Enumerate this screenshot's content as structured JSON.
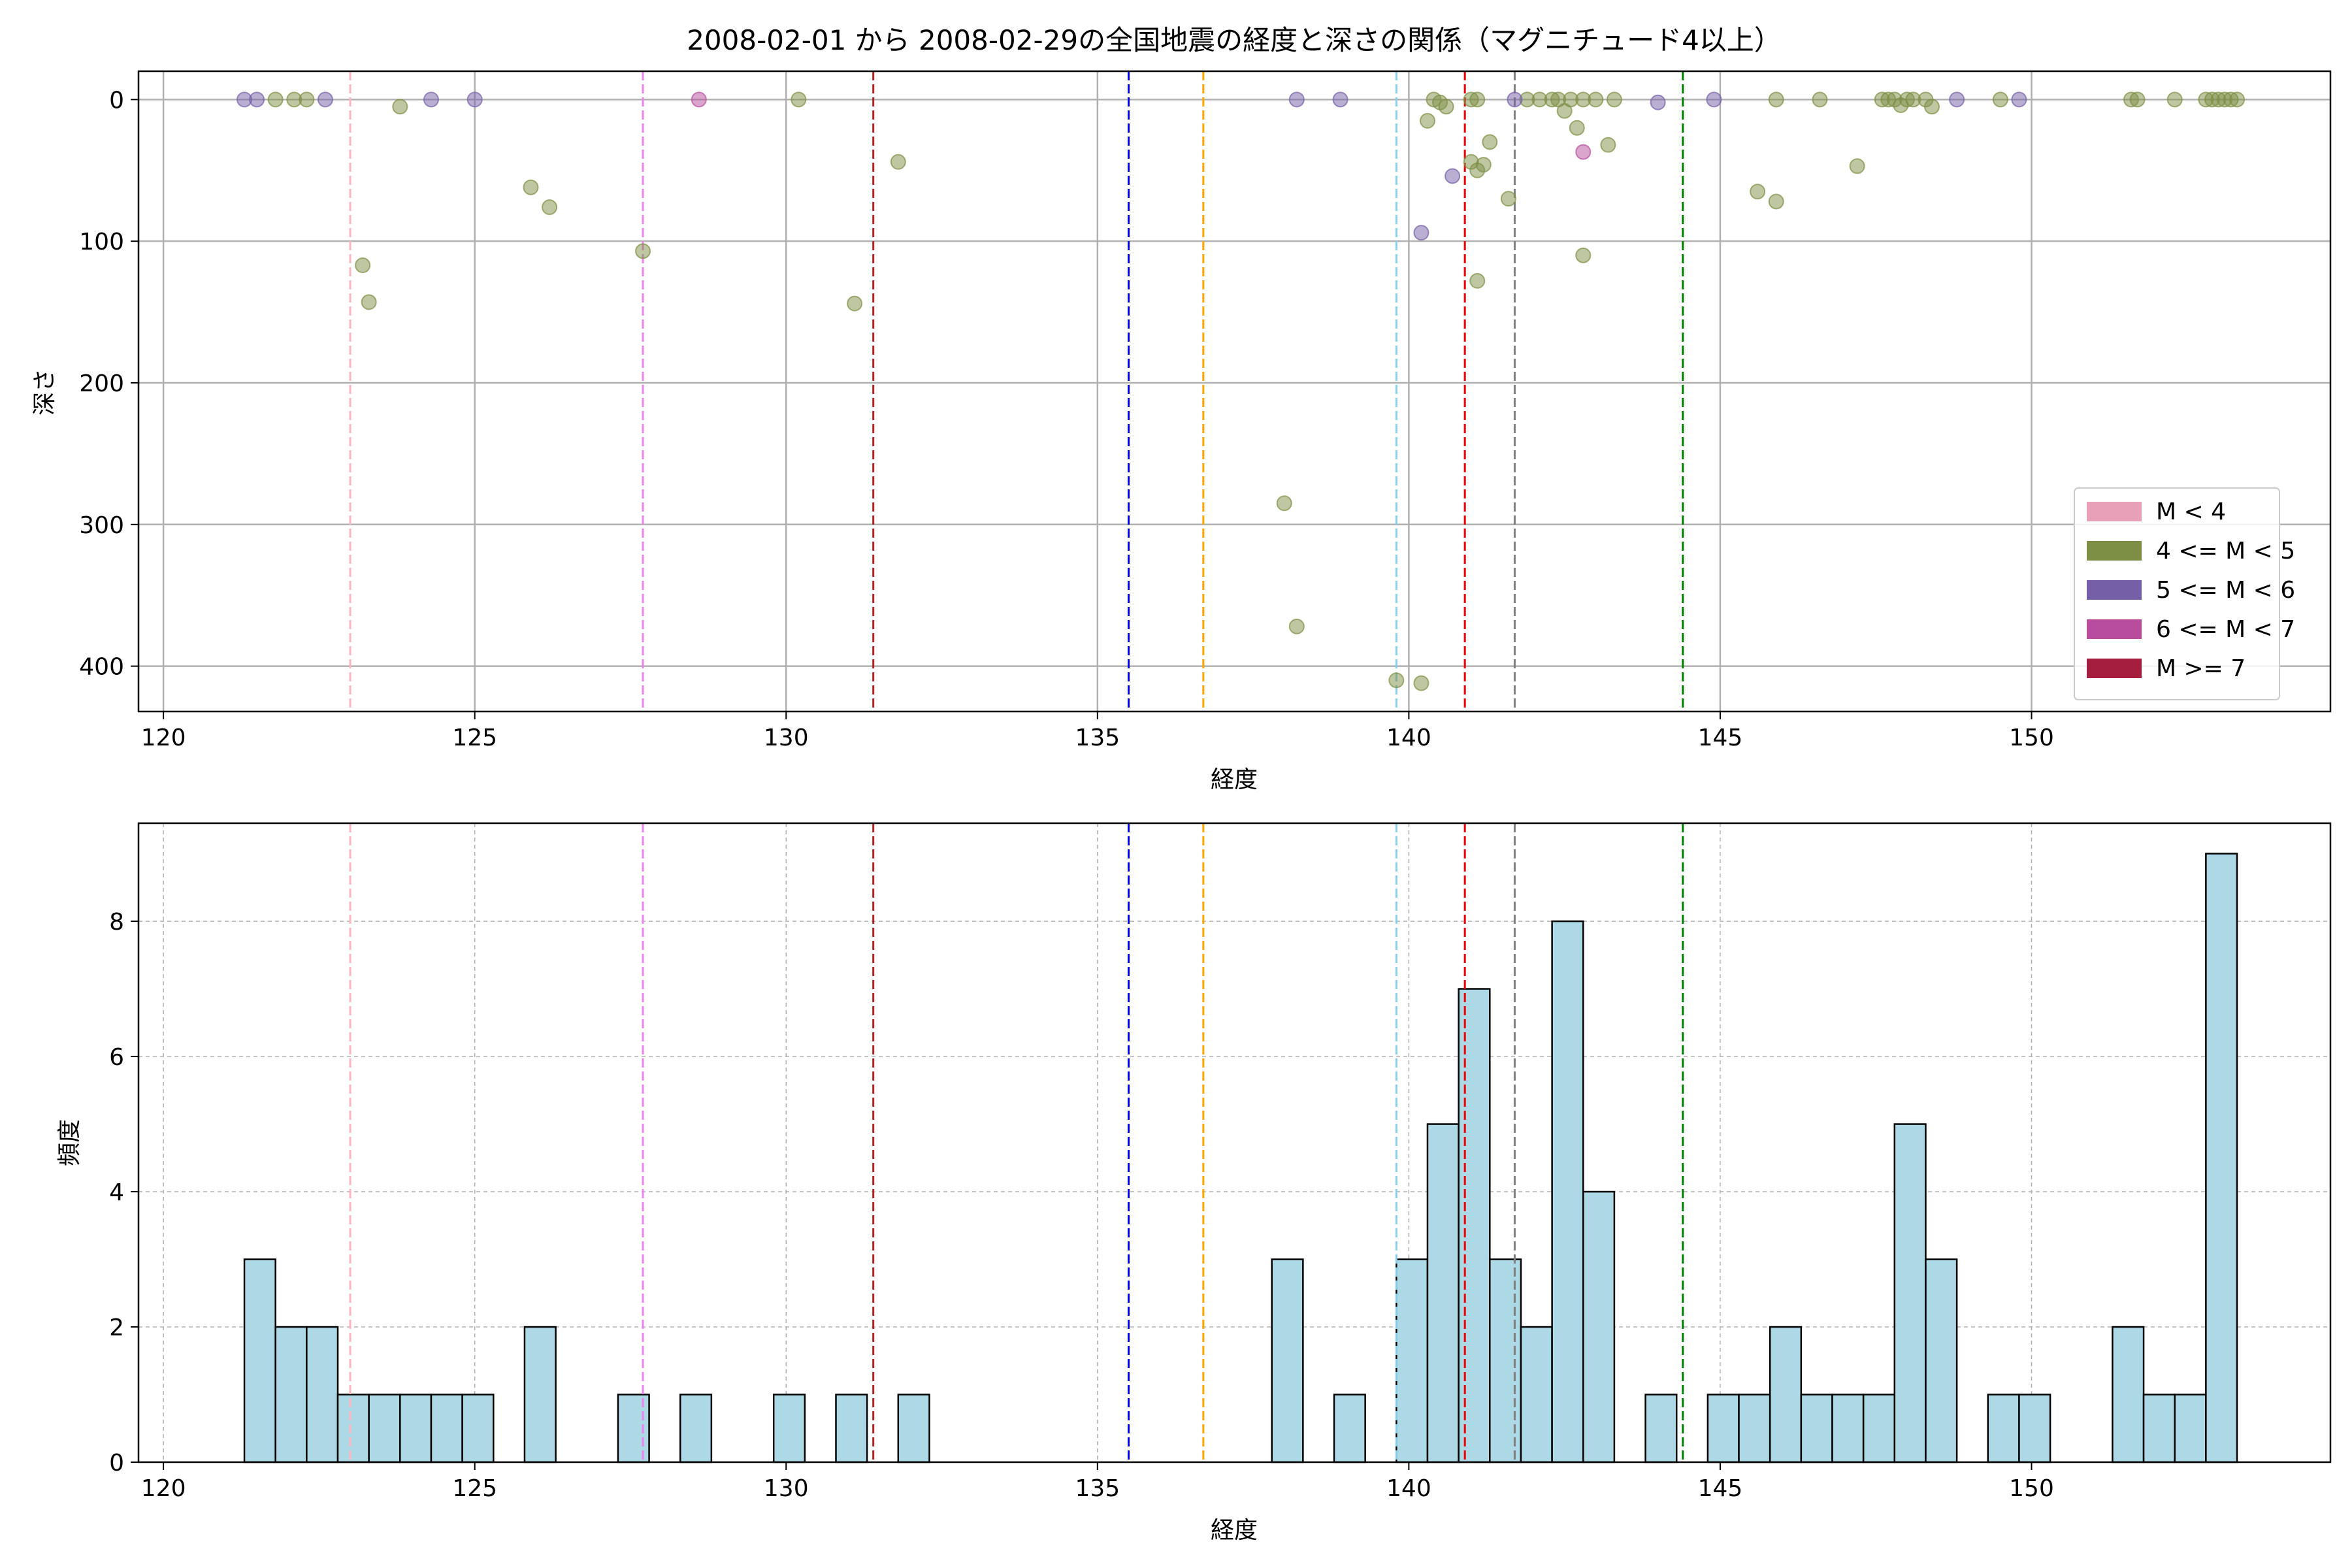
{
  "figure_title": "2008-02-01 から 2008-02-29の全国地震の経度と深さの関係（マグニチュード4以上）",
  "chart_data": [
    {
      "type": "scatter",
      "title": "2008-02-01 から 2008-02-29の全国地震の経度と深さの関係（マグニチュード4以上）",
      "xlabel": "経度",
      "ylabel": "深さ",
      "xlim": [
        119.6,
        154.8
      ],
      "ylim": [
        432,
        -20
      ],
      "y_inverted": true,
      "xticks": [
        120,
        125,
        130,
        135,
        140,
        145,
        150
      ],
      "yticks": [
        0,
        100,
        200,
        300,
        400
      ],
      "grid": true,
      "legend_position": "lower-right",
      "legend": [
        {
          "label": "M < 4",
          "color": "#e8a0b8"
        },
        {
          "label": "4 <= M < 5",
          "color": "#7d8f45"
        },
        {
          "label": "5 <= M < 6",
          "color": "#7560a8"
        },
        {
          "label": "6 <= M < 7",
          "color": "#b84d9d"
        },
        {
          "label": "M >= 7",
          "color": "#a51e3f"
        }
      ],
      "reference_lines": [
        {
          "x": 123.0,
          "color": "#ffb6c1"
        },
        {
          "x": 127.7,
          "color": "#ee82ee"
        },
        {
          "x": 131.4,
          "color": "#b22222"
        },
        {
          "x": 135.5,
          "color": "#0000ee"
        },
        {
          "x": 136.7,
          "color": "#ffa500"
        },
        {
          "x": 139.8,
          "color": "#87ceeb"
        },
        {
          "x": 140.9,
          "color": "#ee0000"
        },
        {
          "x": 141.7,
          "color": "#808080"
        },
        {
          "x": 144.4,
          "color": "#008000"
        }
      ],
      "series": [
        {
          "label_index": 1,
          "points": [
            [
              121.8,
              0
            ],
            [
              122.1,
              0
            ],
            [
              122.3,
              0
            ],
            [
              123.8,
              5
            ],
            [
              130.2,
              0
            ],
            [
              125.9,
              62
            ],
            [
              126.2,
              76
            ],
            [
              123.2,
              117
            ],
            [
              123.3,
              143
            ],
            [
              127.7,
              107
            ],
            [
              131.8,
              44
            ],
            [
              131.1,
              144
            ],
            [
              138.0,
              285
            ],
            [
              138.2,
              372
            ],
            [
              139.8,
              410
            ],
            [
              140.2,
              412
            ],
            [
              140.3,
              15
            ],
            [
              140.4,
              0
            ],
            [
              140.5,
              2
            ],
            [
              140.6,
              5
            ],
            [
              141.0,
              0
            ],
            [
              141.1,
              0
            ],
            [
              141.0,
              44
            ],
            [
              141.1,
              50
            ],
            [
              141.2,
              46
            ],
            [
              141.3,
              30
            ],
            [
              141.6,
              70
            ],
            [
              141.1,
              128
            ],
            [
              141.9,
              0
            ],
            [
              142.1,
              0
            ],
            [
              142.3,
              0
            ],
            [
              142.4,
              0
            ],
            [
              142.5,
              8
            ],
            [
              142.6,
              0
            ],
            [
              142.7,
              20
            ],
            [
              142.8,
              0
            ],
            [
              142.8,
              110
            ],
            [
              143.0,
              0
            ],
            [
              143.2,
              32
            ],
            [
              143.3,
              0
            ],
            [
              145.6,
              65
            ],
            [
              145.9,
              72
            ],
            [
              145.9,
              0
            ],
            [
              146.6,
              0
            ],
            [
              147.2,
              47
            ],
            [
              147.6,
              0
            ],
            [
              147.7,
              0
            ],
            [
              147.8,
              0
            ],
            [
              147.9,
              4
            ],
            [
              148.0,
              0
            ],
            [
              148.1,
              0
            ],
            [
              148.3,
              0
            ],
            [
              148.4,
              5
            ],
            [
              149.5,
              0
            ],
            [
              151.6,
              0
            ],
            [
              151.7,
              0
            ],
            [
              152.3,
              0
            ],
            [
              152.8,
              0
            ],
            [
              152.9,
              0
            ],
            [
              153.0,
              0
            ],
            [
              153.1,
              0
            ],
            [
              153.2,
              0
            ],
            [
              153.3,
              0
            ]
          ]
        },
        {
          "label_index": 2,
          "points": [
            [
              121.3,
              0
            ],
            [
              121.5,
              0
            ],
            [
              122.6,
              0
            ],
            [
              124.3,
              0
            ],
            [
              125.0,
              0
            ],
            [
              138.2,
              0
            ],
            [
              138.9,
              0
            ],
            [
              140.2,
              94
            ],
            [
              140.7,
              54
            ],
            [
              141.7,
              0
            ],
            [
              144.0,
              2
            ],
            [
              144.9,
              0
            ],
            [
              148.8,
              0
            ],
            [
              149.8,
              0
            ]
          ]
        },
        {
          "label_index": 3,
          "points": [
            [
              128.6,
              0
            ],
            [
              142.8,
              37
            ]
          ]
        }
      ]
    },
    {
      "type": "bar",
      "subtype": "histogram",
      "xlabel": "経度",
      "ylabel": "頻度",
      "xlim": [
        119.6,
        154.8
      ],
      "ylim": [
        0,
        9.45
      ],
      "xticks": [
        120,
        125,
        130,
        135,
        140,
        145,
        150
      ],
      "yticks": [
        0,
        2,
        4,
        6,
        8
      ],
      "grid": true,
      "bin_start": 121.3,
      "bin_width": 0.5,
      "bar_color": "#add8e6",
      "edge_color": "#000000",
      "values": [
        3,
        2,
        2,
        1,
        1,
        1,
        1,
        1,
        0,
        2,
        0,
        0,
        1,
        0,
        1,
        0,
        0,
        1,
        0,
        1,
        0,
        1,
        0,
        0,
        0,
        0,
        0,
        0,
        0,
        0,
        0,
        0,
        0,
        3,
        0,
        1,
        0,
        3,
        5,
        7,
        3,
        2,
        8,
        4,
        0,
        1,
        0,
        1,
        1,
        2,
        1,
        1,
        1,
        5,
        3,
        0,
        1,
        1,
        0,
        0,
        2,
        1,
        1,
        9
      ]
    }
  ]
}
